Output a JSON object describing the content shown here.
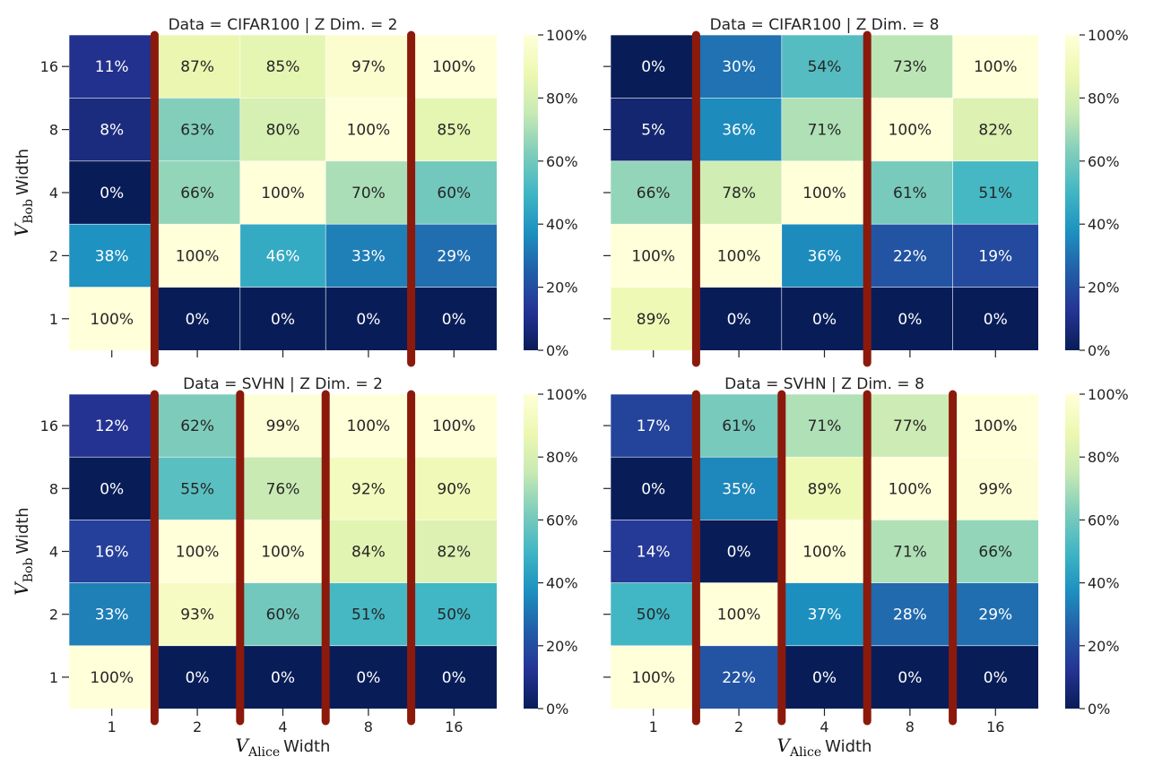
{
  "chart_data": [
    {
      "type": "heatmap",
      "title": "Data = CIFAR100 | Z Dim. = 2",
      "x_categories": [
        "1",
        "2",
        "4",
        "8",
        "16"
      ],
      "y_categories": [
        "16",
        "8",
        "4",
        "2",
        "1"
      ],
      "values": [
        [
          11,
          87,
          85,
          97,
          100
        ],
        [
          8,
          63,
          80,
          100,
          85
        ],
        [
          0,
          66,
          100,
          70,
          60
        ],
        [
          38,
          100,
          46,
          33,
          29
        ],
        [
          100,
          0,
          0,
          0,
          0
        ]
      ],
      "cell_labels": [
        [
          "11%",
          "87%",
          "85%",
          "97%",
          "100%"
        ],
        [
          "8%",
          "63%",
          "80%",
          "100%",
          "85%"
        ],
        [
          "0%",
          "66%",
          "100%",
          "70%",
          "60%"
        ],
        [
          "38%",
          "100%",
          "46%",
          "33%",
          "29%"
        ],
        [
          "100%",
          "0%",
          "0%",
          "0%",
          "0%"
        ]
      ],
      "xlabel_main": "",
      "xlabel_sub": "",
      "xlabel_suffix": "",
      "ylabel_main": "V",
      "ylabel_sub": "Bob",
      "ylabel_suffix": "Width",
      "show_xtick_labels": false,
      "colorbar_ticks": [
        "0%",
        "20%",
        "40%",
        "60%",
        "80%",
        "100%"
      ],
      "colorbar_range": [
        0,
        100
      ],
      "boundary_lines_after_column": [
        1,
        4
      ]
    },
    {
      "type": "heatmap",
      "title": "Data = CIFAR100 | Z Dim. = 8",
      "x_categories": [
        "1",
        "2",
        "4",
        "8",
        "16"
      ],
      "y_categories": [
        "16",
        "8",
        "4",
        "2",
        "1"
      ],
      "values": [
        [
          0,
          30,
          54,
          73,
          100
        ],
        [
          5,
          36,
          71,
          100,
          82
        ],
        [
          66,
          78,
          100,
          61,
          51
        ],
        [
          100,
          100,
          36,
          22,
          19
        ],
        [
          89,
          0,
          0,
          0,
          0
        ]
      ],
      "cell_labels": [
        [
          "0%",
          "30%",
          "54%",
          "73%",
          "100%"
        ],
        [
          "5%",
          "36%",
          "71%",
          "100%",
          "82%"
        ],
        [
          "66%",
          "78%",
          "100%",
          "61%",
          "51%"
        ],
        [
          "100%",
          "100%",
          "36%",
          "22%",
          "19%"
        ],
        [
          "89%",
          "0%",
          "0%",
          "0%",
          "0%"
        ]
      ],
      "xlabel_main": "",
      "xlabel_sub": "",
      "xlabel_suffix": "",
      "ylabel_main": "",
      "ylabel_sub": "",
      "ylabel_suffix": "",
      "show_xtick_labels": false,
      "colorbar_ticks": [
        "0%",
        "20%",
        "40%",
        "60%",
        "80%",
        "100%"
      ],
      "colorbar_range": [
        0,
        100
      ],
      "boundary_lines_after_column": [
        1,
        3
      ]
    },
    {
      "type": "heatmap",
      "title": "Data = SVHN | Z Dim. = 2",
      "x_categories": [
        "1",
        "2",
        "4",
        "8",
        "16"
      ],
      "y_categories": [
        "16",
        "8",
        "4",
        "2",
        "1"
      ],
      "values": [
        [
          12,
          62,
          99,
          100,
          100
        ],
        [
          0,
          55,
          76,
          92,
          90
        ],
        [
          16,
          100,
          100,
          84,
          82
        ],
        [
          33,
          93,
          60,
          51,
          50
        ],
        [
          100,
          0,
          0,
          0,
          0
        ]
      ],
      "cell_labels": [
        [
          "12%",
          "62%",
          "99%",
          "100%",
          "100%"
        ],
        [
          "0%",
          "55%",
          "76%",
          "92%",
          "90%"
        ],
        [
          "16%",
          "100%",
          "100%",
          "84%",
          "82%"
        ],
        [
          "33%",
          "93%",
          "60%",
          "51%",
          "50%"
        ],
        [
          "100%",
          "0%",
          "0%",
          "0%",
          "0%"
        ]
      ],
      "xlabel_main": "V",
      "xlabel_sub": "Alice",
      "xlabel_suffix": "Width",
      "ylabel_main": "V",
      "ylabel_sub": "Bob",
      "ylabel_suffix": "Width",
      "show_xtick_labels": true,
      "colorbar_ticks": [
        "0%",
        "20%",
        "40%",
        "60%",
        "80%",
        "100%"
      ],
      "colorbar_range": [
        0,
        100
      ],
      "boundary_lines_after_column": [
        1,
        2,
        3,
        4
      ]
    },
    {
      "type": "heatmap",
      "title": "Data = SVHN | Z Dim. = 8",
      "x_categories": [
        "1",
        "2",
        "4",
        "8",
        "16"
      ],
      "y_categories": [
        "16",
        "8",
        "4",
        "2",
        "1"
      ],
      "values": [
        [
          17,
          61,
          71,
          77,
          100
        ],
        [
          0,
          35,
          89,
          100,
          99
        ],
        [
          14,
          0,
          100,
          71,
          66
        ],
        [
          50,
          100,
          37,
          28,
          29
        ],
        [
          100,
          22,
          0,
          0,
          0
        ]
      ],
      "cell_labels": [
        [
          "17%",
          "61%",
          "71%",
          "77%",
          "100%"
        ],
        [
          "0%",
          "35%",
          "89%",
          "100%",
          "99%"
        ],
        [
          "14%",
          "0%",
          "100%",
          "71%",
          "66%"
        ],
        [
          "50%",
          "100%",
          "37%",
          "28%",
          "29%"
        ],
        [
          "100%",
          "22%",
          "0%",
          "0%",
          "0%"
        ]
      ],
      "xlabel_main": "V",
      "xlabel_sub": "Alice",
      "xlabel_suffix": "Width",
      "ylabel_main": "",
      "ylabel_sub": "",
      "ylabel_suffix": "",
      "show_xtick_labels": true,
      "colorbar_ticks": [
        "0%",
        "20%",
        "40%",
        "60%",
        "80%",
        "100%"
      ],
      "colorbar_range": [
        0,
        100
      ],
      "boundary_lines_after_column": [
        1,
        2,
        3,
        4
      ]
    }
  ],
  "colors": {
    "boundary_line": "#8b1a0c",
    "colormap": [
      "#081d58",
      "#253494",
      "#225ea8",
      "#1d91c0",
      "#41b6c4",
      "#7fcdbb",
      "#c7e9b4",
      "#edf8b1",
      "#ffffd9"
    ]
  }
}
